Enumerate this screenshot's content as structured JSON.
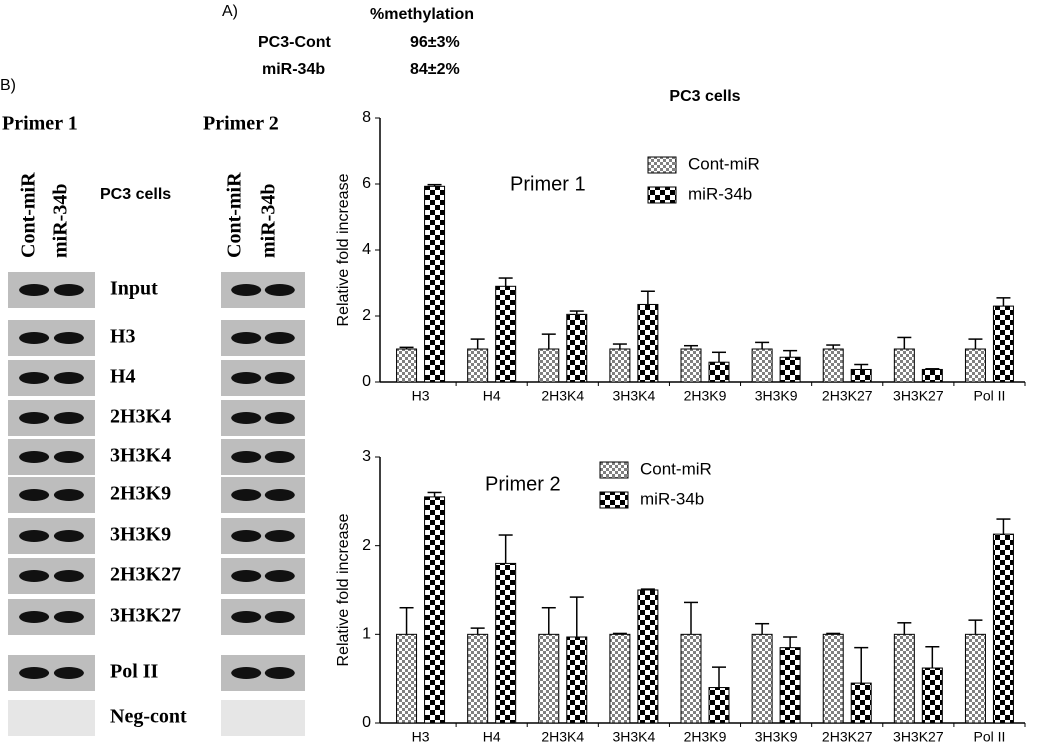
{
  "panel_a": {
    "label": "A)",
    "header": "%methylation",
    "rows": [
      [
        "PC3-Cont",
        "96±3%"
      ],
      [
        "miR-34b",
        "84±2%"
      ]
    ]
  },
  "panel_b": {
    "label": "B)",
    "primers": [
      "Primer 1",
      "Primer 2"
    ],
    "lanes": [
      "Cont-miR",
      "miR-34b"
    ],
    "cell_line": "PC3 cells",
    "rows": [
      "Input",
      "H3",
      "H4",
      "2H3K4",
      "3H3K4",
      "2H3K9",
      "3H3K9",
      "2H3K27",
      "3H3K27",
      "Pol II",
      "Neg-cont"
    ]
  },
  "chart_data": [
    {
      "type": "bar",
      "title": "PC3 cells",
      "annotation": "Primer 1",
      "y_label": "Relative fold increase",
      "categories": [
        "H3",
        "H4",
        "2H3K4",
        "3H3K4",
        "2H3K9",
        "3H3K9",
        "2H3K27",
        "3H3K27",
        "Pol II"
      ],
      "series": [
        {
          "name": "Cont-miR",
          "color": "#808080",
          "values": [
            1.0,
            1.0,
            1.0,
            1.0,
            1.0,
            1.0,
            1.0,
            1.0,
            1.0
          ],
          "errors": [
            0.05,
            0.3,
            0.45,
            0.15,
            0.1,
            0.2,
            0.12,
            0.35,
            0.3
          ]
        },
        {
          "name": "miR-34b",
          "color": "#000000",
          "values": [
            5.93,
            2.9,
            2.05,
            2.35,
            0.6,
            0.75,
            0.38,
            0.38,
            2.3
          ],
          "errors": [
            0.05,
            0.25,
            0.1,
            0.4,
            0.3,
            0.2,
            0.15,
            0.02,
            0.25
          ]
        }
      ],
      "ylim": [
        0,
        8
      ],
      "yticks": [
        0,
        2,
        4,
        6,
        8
      ]
    },
    {
      "type": "bar",
      "annotation": "Primer 2",
      "y_label": "Relative fold increase",
      "categories": [
        "H3",
        "H4",
        "2H3K4",
        "3H3K4",
        "2H3K9",
        "3H3K9",
        "2H3K27",
        "3H3K27",
        "Pol II"
      ],
      "series": [
        {
          "name": "Cont-miR",
          "color": "#808080",
          "values": [
            1.0,
            1.0,
            1.0,
            1.0,
            1.0,
            1.0,
            1.0,
            1.0,
            1.0
          ],
          "errors": [
            0.3,
            0.07,
            0.3,
            0.01,
            0.36,
            0.12,
            0.01,
            0.13,
            0.16
          ]
        },
        {
          "name": "miR-34b",
          "color": "#000000",
          "values": [
            2.55,
            1.8,
            0.97,
            1.5,
            0.4,
            0.85,
            0.45,
            0.62,
            2.13
          ],
          "errors": [
            0.05,
            0.32,
            0.45,
            0.01,
            0.23,
            0.12,
            0.4,
            0.24,
            0.17
          ]
        }
      ],
      "ylim": [
        0,
        3
      ],
      "yticks": [
        0,
        1,
        2,
        3
      ]
    }
  ]
}
